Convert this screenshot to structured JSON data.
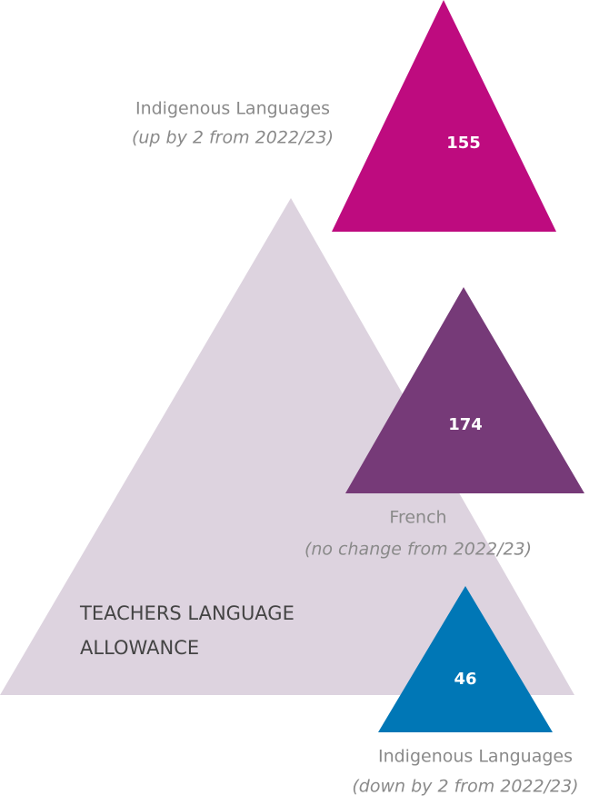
{
  "title": [
    "TEACHERS LANGUAGE",
    "ALLOWANCE"
  ],
  "items": [
    {
      "value": 155,
      "label": "Indigenous Languages",
      "note": "(up by 2 from 2022/23)",
      "color": "#be0b7f"
    },
    {
      "value": 174,
      "label": "French",
      "note": "(no change from 2022/23)",
      "color": "#763a78"
    },
    {
      "value": 46,
      "label": "Indigenous Languages",
      "note": "(down by 2 from 2022/23)",
      "color": "#0077b6"
    }
  ]
}
